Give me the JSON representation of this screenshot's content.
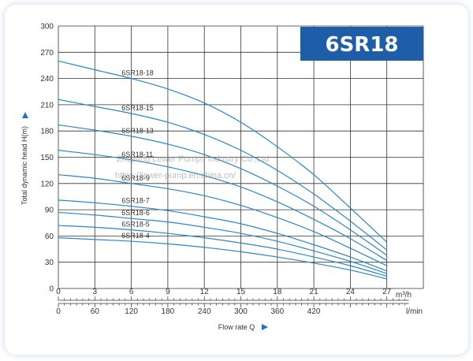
{
  "chart_data": {
    "type": "line",
    "title": "6SR18",
    "ylabel": "Total dynamic head H(m)",
    "xlabel": "Flow rate Q",
    "x_unit_top": "m³/h",
    "x_unit_bottom": "l/min",
    "xlim": [
      0,
      30
    ],
    "ylim": [
      0,
      300
    ],
    "y_ticks": [
      0,
      30,
      60,
      90,
      120,
      150,
      180,
      210,
      240,
      270,
      300
    ],
    "x_ticks_top": [
      0,
      3,
      6,
      9,
      12,
      15,
      18,
      21,
      24,
      27
    ],
    "x_ticks_bottom": [
      0,
      60,
      120,
      180,
      240,
      300,
      360,
      420
    ],
    "grid": true,
    "x": [
      0,
      3,
      6,
      9,
      12,
      15,
      18,
      21,
      24,
      27
    ],
    "series": [
      {
        "name": "6SR18-18",
        "values": [
          260,
          250,
          240,
          228,
          212,
          190,
          162,
          130,
          92,
          53
        ]
      },
      {
        "name": "6SR18-15",
        "values": [
          216,
          208,
          200,
          190,
          176,
          158,
          135,
          108,
          77,
          44
        ]
      },
      {
        "name": "6SR18-13",
        "values": [
          187,
          181,
          174,
          165,
          153,
          137,
          117,
          94,
          67,
          38
        ]
      },
      {
        "name": "6SR18-11",
        "values": [
          158,
          153,
          147,
          139,
          129,
          116,
          99,
          79,
          57,
          32
        ]
      },
      {
        "name": "6SR18-9",
        "values": [
          130,
          126,
          120,
          114,
          106,
          95,
          81,
          65,
          46,
          26
        ]
      },
      {
        "name": "6SR18-7",
        "values": [
          101,
          98,
          94,
          89,
          82,
          74,
          63,
          50,
          36,
          20
        ]
      },
      {
        "name": "6SR18-6",
        "values": [
          87,
          84,
          80,
          76,
          70,
          63,
          54,
          43,
          31,
          17
        ]
      },
      {
        "name": "6SR18-5",
        "values": [
          72,
          70,
          67,
          63,
          58,
          52,
          45,
          36,
          26,
          14
        ]
      },
      {
        "name": "6SR18-4",
        "values": [
          58,
          56,
          54,
          51,
          47,
          42,
          36,
          29,
          21,
          11
        ]
      }
    ],
    "watermark": [
      "Zhejiang Lewer Pumps Industry Co.,Ltd",
      "https://lewer-pump.en.china.cn/"
    ],
    "colors": {
      "line": "#2a86c8",
      "grid": "#333333",
      "title_box": "#1e5ea8",
      "arrow": "#1e73c8"
    }
  }
}
